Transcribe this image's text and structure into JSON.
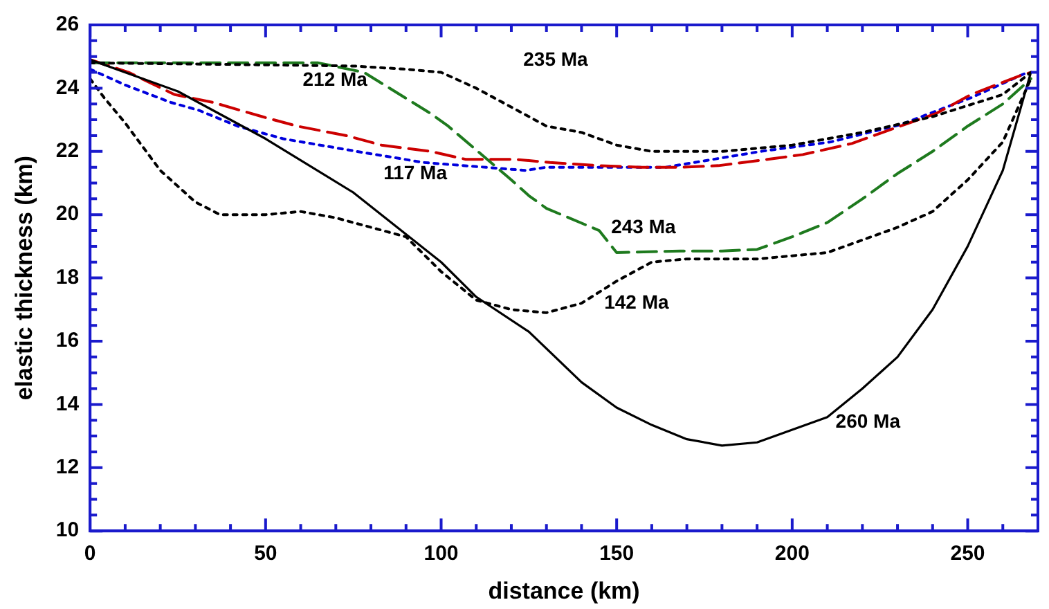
{
  "chart_data": {
    "type": "line",
    "xlabel": "distance (km)",
    "ylabel": "elastic thickness (km)",
    "xlim": [
      0,
      270
    ],
    "ylim": [
      10,
      26
    ],
    "xticks": [
      0,
      {
        "value": 10,
        "label": null
      },
      {
        "value": 20,
        "label": null
      },
      {
        "value": 30,
        "label": null
      },
      {
        "value": 40,
        "label": null
      },
      50,
      {
        "value": 60,
        "label": null
      },
      {
        "value": 70,
        "label": null
      },
      {
        "value": 80,
        "label": null
      },
      {
        "value": 90,
        "label": null
      },
      100,
      {
        "value": 110,
        "label": null
      },
      {
        "value": 120,
        "label": null
      },
      {
        "value": 130,
        "label": null
      },
      {
        "value": 140,
        "label": null
      },
      150,
      {
        "value": 160,
        "label": null
      },
      {
        "value": 170,
        "label": null
      },
      {
        "value": 180,
        "label": null
      },
      {
        "value": 190,
        "label": null
      },
      200,
      {
        "value": 210,
        "label": null
      },
      {
        "value": 220,
        "label": null
      },
      {
        "value": 230,
        "label": null
      },
      {
        "value": 240,
        "label": null
      },
      250,
      {
        "value": 260,
        "label": null
      },
      {
        "value": 270,
        "label": null
      }
    ],
    "yticks": [
      10,
      {
        "value": 10.5,
        "label": null
      },
      {
        "value": 11,
        "label": null
      },
      {
        "value": 11.5,
        "label": null
      },
      12,
      {
        "value": 12.5,
        "label": null
      },
      {
        "value": 13,
        "label": null
      },
      {
        "value": 13.5,
        "label": null
      },
      14,
      {
        "value": 14.5,
        "label": null
      },
      {
        "value": 15,
        "label": null
      },
      {
        "value": 15.5,
        "label": null
      },
      16,
      {
        "value": 16.5,
        "label": null
      },
      {
        "value": 17,
        "label": null
      },
      {
        "value": 17.5,
        "label": null
      },
      18,
      {
        "value": 18.5,
        "label": null
      },
      {
        "value": 19,
        "label": null
      },
      {
        "value": 19.5,
        "label": null
      },
      20,
      {
        "value": 20.5,
        "label": null
      },
      {
        "value": 21,
        "label": null
      },
      {
        "value": 21.5,
        "label": null
      },
      22,
      {
        "value": 22.5,
        "label": null
      },
      {
        "value": 23,
        "label": null
      },
      {
        "value": 23.5,
        "label": null
      },
      24,
      {
        "value": 24.5,
        "label": null
      },
      {
        "value": 25,
        "label": null
      },
      {
        "value": 25.5,
        "label": null
      },
      26
    ],
    "grid": false,
    "legend": false,
    "marker": "none",
    "series": [
      {
        "color": "#000000",
        "line_style": "solid",
        "x": [
          0,
          25,
          50,
          75,
          100,
          110,
          125,
          140,
          150,
          160,
          170,
          180,
          190,
          200,
          210,
          220,
          230,
          240,
          250,
          260,
          268
        ],
        "values": [
          24.9,
          23.9,
          22.4,
          20.7,
          18.5,
          17.4,
          16.3,
          14.7,
          13.9,
          13.35,
          12.9,
          12.7,
          12.8,
          13.2,
          13.6,
          14.5,
          15.5,
          17.0,
          19.0,
          21.4,
          24.5
        ]
      },
      {
        "color": "#000000",
        "line_style": "dotted",
        "x": [
          0,
          4,
          10,
          20,
          30,
          37,
          50,
          60,
          70,
          80,
          90,
          100,
          110,
          120,
          130,
          140,
          150,
          160,
          170,
          190,
          210,
          220,
          230,
          240,
          250,
          260,
          268
        ],
        "values": [
          24.3,
          23.7,
          22.9,
          21.4,
          20.4,
          20.0,
          20.0,
          20.1,
          19.9,
          19.6,
          19.3,
          18.2,
          17.3,
          17.0,
          16.9,
          17.2,
          17.9,
          18.5,
          18.6,
          18.6,
          18.8,
          19.2,
          19.6,
          20.1,
          21.1,
          22.3,
          24.3
        ]
      },
      {
        "color": "#000000",
        "line_style": "dotted",
        "x": [
          0,
          40,
          75,
          90,
          100,
          110,
          120,
          130,
          140,
          150,
          160,
          180,
          200,
          220,
          240,
          260,
          268
        ],
        "values": [
          24.8,
          24.75,
          24.7,
          24.6,
          24.5,
          24.0,
          23.4,
          22.8,
          22.6,
          22.2,
          22.0,
          22.0,
          22.2,
          22.6,
          23.1,
          23.8,
          24.5
        ]
      },
      {
        "color": "#1e7a1e",
        "line_style": "dashed",
        "x": [
          0,
          40,
          65,
          78,
          97,
          102,
          120,
          125,
          130,
          145,
          150,
          168,
          180,
          190,
          200,
          210,
          220,
          230,
          240,
          250,
          260,
          268
        ],
        "values": [
          24.8,
          24.8,
          24.8,
          24.5,
          23.2,
          22.8,
          21.1,
          20.6,
          20.2,
          19.5,
          18.8,
          18.85,
          18.85,
          18.9,
          19.3,
          19.75,
          20.5,
          21.3,
          22.0,
          22.8,
          23.5,
          24.3
        ]
      },
      {
        "color": "#cc0000",
        "line_style": "dashed",
        "x": [
          0,
          11,
          24,
          35,
          49,
          59,
          73,
          83,
          97,
          107,
          121,
          131,
          145,
          157,
          169,
          179,
          193,
          203,
          217,
          227,
          241,
          251,
          265,
          268
        ],
        "values": [
          24.9,
          24.5,
          23.8,
          23.55,
          23.1,
          22.8,
          22.5,
          22.2,
          22.0,
          21.75,
          21.75,
          21.65,
          21.55,
          21.5,
          21.5,
          21.55,
          21.75,
          21.9,
          22.25,
          22.65,
          23.2,
          23.8,
          24.4,
          24.5
        ]
      },
      {
        "color": "#0000dd",
        "line_style": "dotted",
        "x": [
          0,
          10,
          23,
          31,
          42,
          55,
          76,
          95,
          124,
          130,
          164,
          191,
          211,
          231,
          251,
          267
        ],
        "values": [
          24.6,
          24.1,
          23.55,
          23.3,
          22.8,
          22.4,
          22.0,
          21.65,
          21.4,
          21.5,
          21.5,
          22.0,
          22.3,
          22.85,
          23.7,
          24.5
        ]
      }
    ],
    "annotations": [
      {
        "text": "260 Ma",
        "x": 210,
        "y": 13.6
      },
      {
        "text": "142 Ma",
        "x": 150,
        "y": 17.9
      },
      {
        "text": "235 Ma",
        "x": 110,
        "y": 24.0
      },
      {
        "text": "243 Ma",
        "x": 150,
        "y": 18.8
      },
      {
        "text": "212 Ma",
        "x": 59,
        "y": 22.8
      },
      {
        "text": "117 Ma",
        "x": 95,
        "y": 21.65
      }
    ]
  }
}
